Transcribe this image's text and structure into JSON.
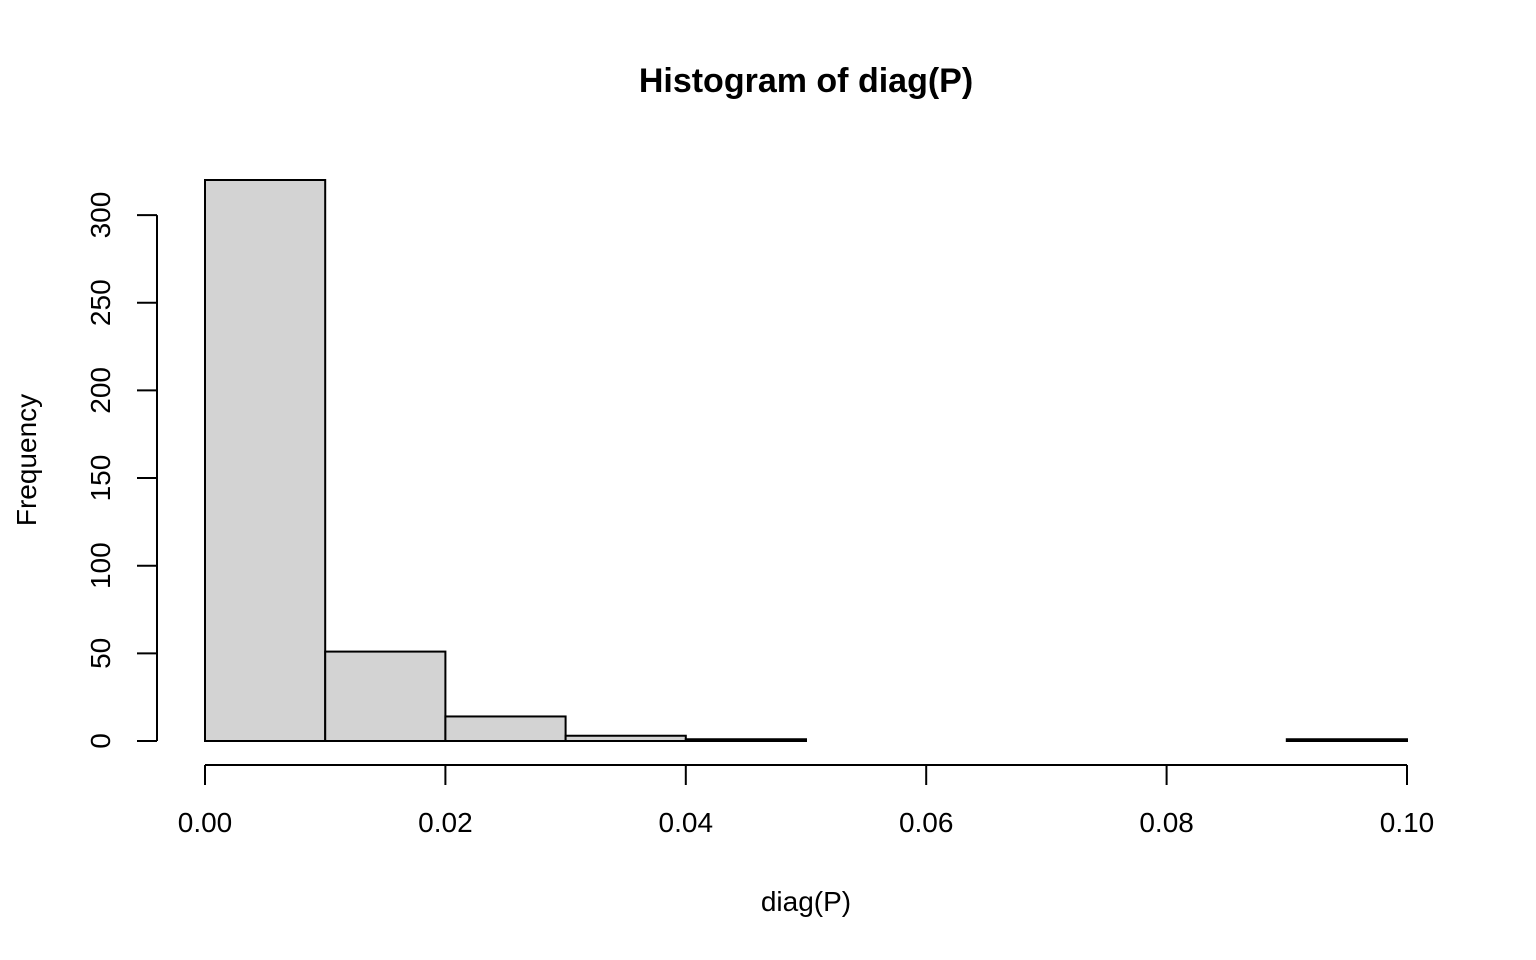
{
  "chart_data": {
    "type": "bar",
    "title": "Histogram of diag(P)",
    "xlabel": "diag(P)",
    "ylabel": "Frequency",
    "bins": [
      {
        "start": 0.0,
        "end": 0.01,
        "count": 320
      },
      {
        "start": 0.01,
        "end": 0.02,
        "count": 51
      },
      {
        "start": 0.02,
        "end": 0.03,
        "count": 14
      },
      {
        "start": 0.03,
        "end": 0.04,
        "count": 3
      },
      {
        "start": 0.04,
        "end": 0.05,
        "count": 1
      },
      {
        "start": 0.05,
        "end": 0.06,
        "count": 0
      },
      {
        "start": 0.06,
        "end": 0.07,
        "count": 0
      },
      {
        "start": 0.07,
        "end": 0.08,
        "count": 0
      },
      {
        "start": 0.08,
        "end": 0.09,
        "count": 0
      },
      {
        "start": 0.09,
        "end": 0.1,
        "count": 1
      }
    ],
    "xlim": [
      0,
      0.1
    ],
    "ylim": [
      0,
      320
    ],
    "x_ticks": [
      "0.00",
      "0.02",
      "0.04",
      "0.06",
      "0.08",
      "0.10"
    ],
    "y_ticks": [
      "0",
      "50",
      "100",
      "150",
      "200",
      "250",
      "300"
    ],
    "bar_color": "#d3d3d3",
    "edge_color": "#000000",
    "grid": false,
    "legend": "none"
  }
}
